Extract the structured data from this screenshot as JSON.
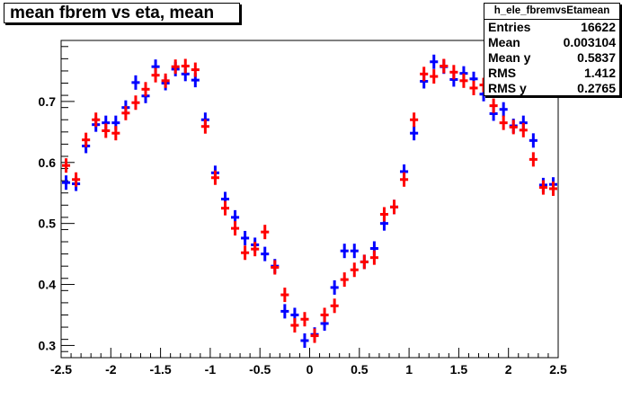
{
  "title": "mean fbrem vs eta, mean",
  "stats": {
    "name": "h_ele_fbremvsEtamean",
    "rows": [
      {
        "label": "Entries",
        "value": "16622"
      },
      {
        "label": "Mean",
        "value": "0.003104"
      },
      {
        "label": "Mean y",
        "value": "0.5837"
      },
      {
        "label": "RMS",
        "value": "1.412"
      },
      {
        "label": "RMS y",
        "value": "0.2765"
      }
    ]
  },
  "chart_data": {
    "type": "scatter",
    "xlim": [
      -2.5,
      2.5
    ],
    "ylim": [
      0.28,
      0.8
    ],
    "x_ticks": [
      "-2.5",
      "-2",
      "-1.5",
      "-1",
      "-0.5",
      "0",
      "0.5",
      "1",
      "1.5",
      "2",
      "2.5"
    ],
    "x_tick_values": [
      -2.5,
      -2,
      -1.5,
      -1,
      -0.5,
      0,
      0.5,
      1,
      1.5,
      2,
      2.5
    ],
    "y_ticks": [
      "0.3",
      "0.4",
      "0.5",
      "0.6",
      "0.7"
    ],
    "y_tick_values": [
      0.3,
      0.4,
      0.5,
      0.6,
      0.7
    ],
    "bin_width": 0.1,
    "series": [
      {
        "color": "#0000ff",
        "x": [
          -2.45,
          -2.35,
          -2.25,
          -2.15,
          -2.05,
          -1.95,
          -1.85,
          -1.75,
          -1.65,
          -1.55,
          -1.45,
          -1.35,
          -1.25,
          -1.15,
          -1.05,
          -0.95,
          -0.85,
          -0.75,
          -0.65,
          -0.55,
          -0.45,
          -0.35,
          -0.25,
          -0.15,
          -0.05,
          0.05,
          0.15,
          0.25,
          0.35,
          0.45,
          0.55,
          0.65,
          0.75,
          0.85,
          0.95,
          1.05,
          1.15,
          1.25,
          1.35,
          1.45,
          1.55,
          1.65,
          1.75,
          1.85,
          1.95,
          2.05,
          2.15,
          2.25,
          2.35,
          2.45
        ],
        "y": [
          0.567,
          0.565,
          0.627,
          0.662,
          0.665,
          0.665,
          0.69,
          0.731,
          0.709,
          0.757,
          0.73,
          0.753,
          0.745,
          0.735,
          0.67,
          0.583,
          0.54,
          0.51,
          0.476,
          0.465,
          0.45,
          0.43,
          0.356,
          0.35,
          0.308,
          0.318,
          0.336,
          0.395,
          0.455,
          0.455,
          0.437,
          0.459,
          0.5,
          0.527,
          0.585,
          0.648,
          0.733,
          0.765,
          0.757,
          0.736,
          0.746,
          0.737,
          0.712,
          0.68,
          0.687,
          0.66,
          0.665,
          0.636,
          0.563,
          0.564
        ]
      },
      {
        "color": "#ff0000",
        "x": [
          -2.45,
          -2.35,
          -2.25,
          -2.15,
          -2.05,
          -1.95,
          -1.85,
          -1.75,
          -1.65,
          -1.55,
          -1.45,
          -1.35,
          -1.25,
          -1.15,
          -1.05,
          -0.95,
          -0.85,
          -0.75,
          -0.65,
          -0.55,
          -0.45,
          -0.35,
          -0.25,
          -0.15,
          -0.05,
          0.05,
          0.15,
          0.25,
          0.35,
          0.45,
          0.55,
          0.65,
          0.75,
          0.85,
          0.95,
          1.05,
          1.15,
          1.25,
          1.35,
          1.45,
          1.55,
          1.65,
          1.75,
          1.85,
          1.95,
          2.05,
          2.15,
          2.25,
          2.35,
          2.45
        ],
        "y": [
          0.595,
          0.572,
          0.637,
          0.67,
          0.652,
          0.648,
          0.681,
          0.698,
          0.72,
          0.743,
          0.734,
          0.757,
          0.758,
          0.752,
          0.659,
          0.575,
          0.525,
          0.492,
          0.452,
          0.458,
          0.486,
          0.428,
          0.383,
          0.333,
          0.343,
          0.316,
          0.35,
          0.365,
          0.408,
          0.424,
          0.437,
          0.444,
          0.515,
          0.527,
          0.572,
          0.67,
          0.745,
          0.741,
          0.758,
          0.748,
          0.734,
          0.722,
          0.727,
          0.693,
          0.665,
          0.658,
          0.653,
          0.605,
          0.559,
          0.557
        ]
      }
    ]
  }
}
